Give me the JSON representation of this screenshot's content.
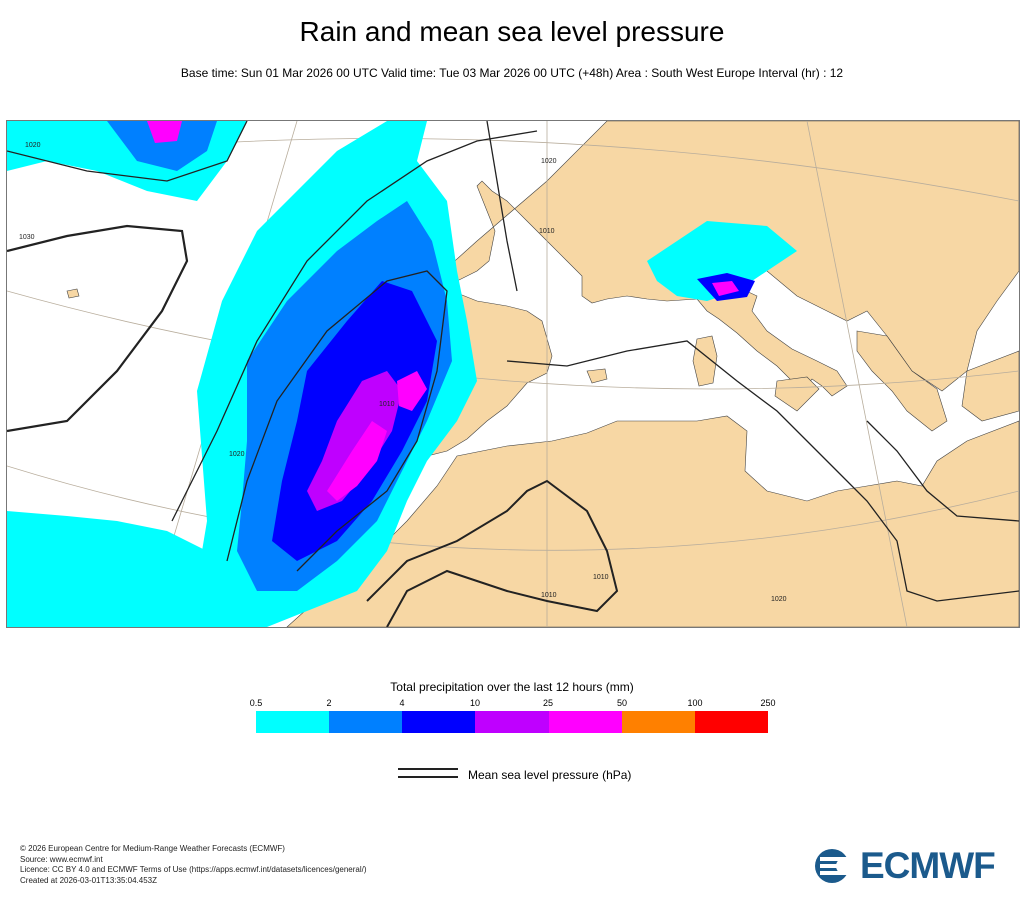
{
  "title": "Rain and mean sea level pressure",
  "subtitle": "Base time: Sun 01 Mar 2026 00 UTC Valid time: Tue 03 Mar 2026 00 UTC (+48h) Area : South West Europe Interval (hr) : 12",
  "map": {
    "isobar_labels": [
      "1020",
      "1030",
      "1020",
      "1010",
      "1020",
      "1010",
      "1020",
      "1010",
      "1010"
    ],
    "colors": {
      "land": "#f7d7a4",
      "sea": "#ffffff",
      "isobar": "#222222"
    }
  },
  "legend": {
    "title": "Total precipitation over the last 12 hours (mm)",
    "ticks": [
      "0.5",
      "2",
      "4",
      "10",
      "25",
      "50",
      "100",
      "250"
    ],
    "colors": [
      "#00ffff",
      "#0080ff",
      "#0000ff",
      "#bf00ff",
      "#ff00ff",
      "#ff8000",
      "#ff0000"
    ]
  },
  "isobar_legend": {
    "label": "Mean sea level pressure (hPa)"
  },
  "footer": {
    "lines": [
      "© 2026 European Centre for Medium-Range Weather Forecasts (ECMWF)",
      "Source: www.ecmwf.int",
      "Licence: CC BY 4.0 and ECMWF Terms of Use (https://apps.ecmwf.int/datasets/licences/general/)",
      "Created at 2026-03-01T13:35:04.453Z"
    ]
  },
  "logo": {
    "text": "ECMWF",
    "icon": "ecmwf-logo-icon",
    "color": "#1b5a8c"
  }
}
